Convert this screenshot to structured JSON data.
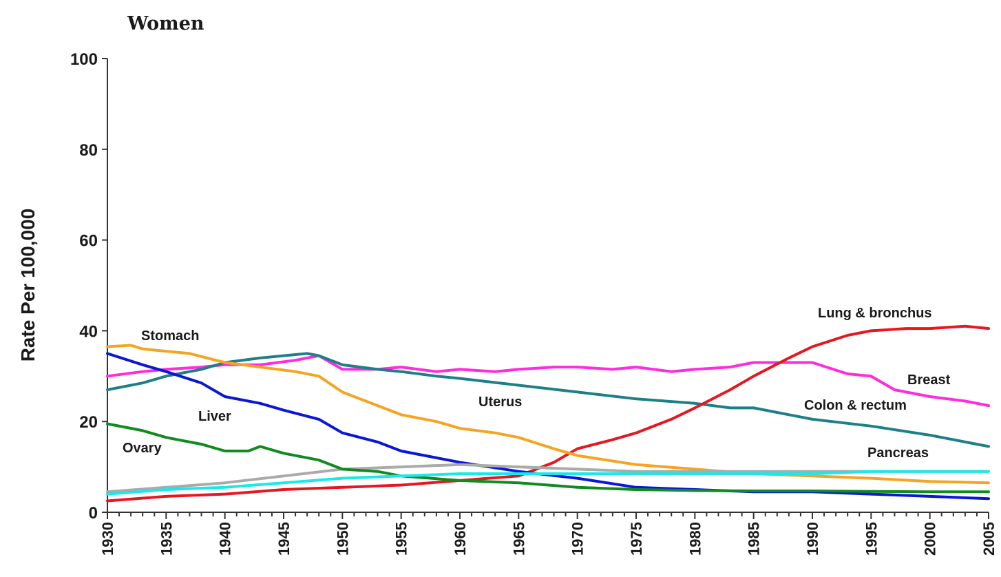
{
  "chart_data": {
    "type": "line",
    "title": "Women",
    "xlabel": "",
    "ylabel": "Rate Per 100,000",
    "xlim": [
      1930,
      2005
    ],
    "ylim": [
      0,
      100
    ],
    "yticks": [
      0,
      20,
      40,
      60,
      80,
      100
    ],
    "xticks": [
      1930,
      1935,
      1940,
      1945,
      1950,
      1955,
      1960,
      1965,
      1970,
      1975,
      1980,
      1985,
      1990,
      1995,
      2000,
      2005
    ],
    "grid": false,
    "series": [
      {
        "name": "Breast",
        "color": "#ff2bdf",
        "x": [
          1930,
          1933,
          1935,
          1938,
          1940,
          1943,
          1946,
          1948,
          1950,
          1953,
          1955,
          1958,
          1960,
          1963,
          1965,
          1968,
          1970,
          1973,
          1975,
          1978,
          1980,
          1983,
          1985,
          1987,
          1990,
          1993,
          1995,
          1997,
          2000,
          2003,
          2005
        ],
        "y": [
          30,
          31,
          31.5,
          32,
          32.5,
          32.5,
          33.5,
          34.5,
          31.5,
          31.5,
          32,
          31,
          31.5,
          31,
          31.5,
          32,
          32,
          31.5,
          32,
          31,
          31.5,
          32,
          33,
          33,
          33,
          30.5,
          30,
          27,
          25.5,
          24.5,
          23.5
        ]
      },
      {
        "name": "Colon & rectum",
        "color": "#1d8088",
        "x": [
          1930,
          1933,
          1935,
          1938,
          1940,
          1943,
          1945,
          1947,
          1948,
          1950,
          1953,
          1955,
          1958,
          1960,
          1965,
          1970,
          1975,
          1980,
          1983,
          1985,
          1990,
          1995,
          2000,
          2005
        ],
        "y": [
          27,
          28.5,
          30,
          31.5,
          33,
          34,
          34.5,
          35,
          34.5,
          32.5,
          31.5,
          31,
          30,
          29.5,
          28,
          26.5,
          25,
          24,
          23,
          23,
          20.5,
          19,
          17,
          14.5
        ]
      },
      {
        "name": "Lung & bronchus",
        "color": "#e7171f",
        "x": [
          1930,
          1935,
          1940,
          1945,
          1950,
          1955,
          1960,
          1965,
          1968,
          1970,
          1973,
          1975,
          1978,
          1980,
          1983,
          1985,
          1988,
          1990,
          1993,
          1995,
          1998,
          2000,
          2003,
          2005
        ],
        "y": [
          2.5,
          3.5,
          4,
          5,
          5.5,
          6,
          7,
          8,
          11,
          14,
          16,
          17.5,
          20.5,
          23,
          27,
          30,
          34,
          36.5,
          39,
          40,
          40.5,
          40.5,
          41,
          40.5
        ]
      },
      {
        "name": "Stomach",
        "color": "#f5a422",
        "x": [
          1930,
          1932,
          1933,
          1935,
          1937,
          1940,
          1943,
          1946,
          1948,
          1950,
          1953,
          1955,
          1958,
          1960,
          1963,
          1965,
          1968,
          1970,
          1975,
          1980,
          1985,
          1990,
          1995,
          2000,
          2005
        ],
        "y": [
          36.5,
          36.8,
          36,
          35.5,
          35,
          33,
          32,
          31,
          30,
          26.5,
          23.5,
          21.5,
          20,
          18.5,
          17.5,
          16.5,
          14,
          12.5,
          10.5,
          9.5,
          8.5,
          8,
          7.5,
          6.8,
          6.5
        ]
      },
      {
        "name": "Liver",
        "color": "#0a16d8",
        "x": [
          1930,
          1933,
          1935,
          1938,
          1940,
          1943,
          1945,
          1948,
          1950,
          1953,
          1955,
          1958,
          1960,
          1965,
          1970,
          1975,
          1980,
          1985,
          1990,
          1995,
          2000,
          2005
        ],
        "y": [
          35,
          32.5,
          31,
          28.5,
          25.5,
          24,
          22.5,
          20.5,
          17.5,
          15.5,
          13.5,
          12,
          11,
          9,
          7.5,
          5.5,
          5,
          4.5,
          4.5,
          4,
          3.5,
          3
        ]
      },
      {
        "name": "Uterus",
        "color": "#aaaaaa",
        "x": [
          1930,
          1935,
          1940,
          1945,
          1950,
          1955,
          1960,
          1965,
          1970,
          1975,
          1980,
          1985,
          1990,
          1995,
          2000,
          2005
        ],
        "y": [
          4.5,
          5.5,
          6.5,
          8,
          9.5,
          10,
          10.5,
          10,
          9.5,
          9,
          9,
          9,
          9,
          9,
          9,
          9
        ]
      },
      {
        "name": "Ovary",
        "color": "#108b20",
        "x": [
          1930,
          1933,
          1935,
          1938,
          1940,
          1942,
          1943,
          1945,
          1948,
          1950,
          1953,
          1955,
          1960,
          1965,
          1970,
          1975,
          1980,
          1985,
          1990,
          1995,
          2000,
          2005
        ],
        "y": [
          19.5,
          18,
          16.5,
          15,
          13.5,
          13.5,
          14.5,
          13,
          11.5,
          9.5,
          9,
          8,
          7,
          6.5,
          5.5,
          5,
          4.8,
          4.7,
          4.7,
          4.6,
          4.5,
          4.5
        ]
      },
      {
        "name": "Pancreas",
        "color": "#1ce8e8",
        "x": [
          1930,
          1935,
          1940,
          1945,
          1950,
          1955,
          1960,
          1965,
          1970,
          1975,
          1980,
          1985,
          1990,
          1995,
          2000,
          2005
        ],
        "y": [
          4,
          5,
          5.5,
          6.5,
          7.5,
          8,
          8.5,
          8.5,
          8.5,
          8.5,
          8.5,
          8.5,
          8.5,
          9,
          9,
          9
        ]
      }
    ],
    "annotations": [
      {
        "text": "Stomach",
        "series": "Stomach"
      },
      {
        "text": "Liver",
        "series": "Liver"
      },
      {
        "text": "Ovary",
        "series": "Ovary"
      },
      {
        "text": "Uterus",
        "series": "Uterus"
      },
      {
        "text": "Lung & bronchus",
        "series": "Lung & bronchus"
      },
      {
        "text": "Breast",
        "series": "Breast"
      },
      {
        "text": "Colon & rectum",
        "series": "Colon & rectum"
      },
      {
        "text": "Pancreas",
        "series": "Pancreas"
      }
    ]
  }
}
